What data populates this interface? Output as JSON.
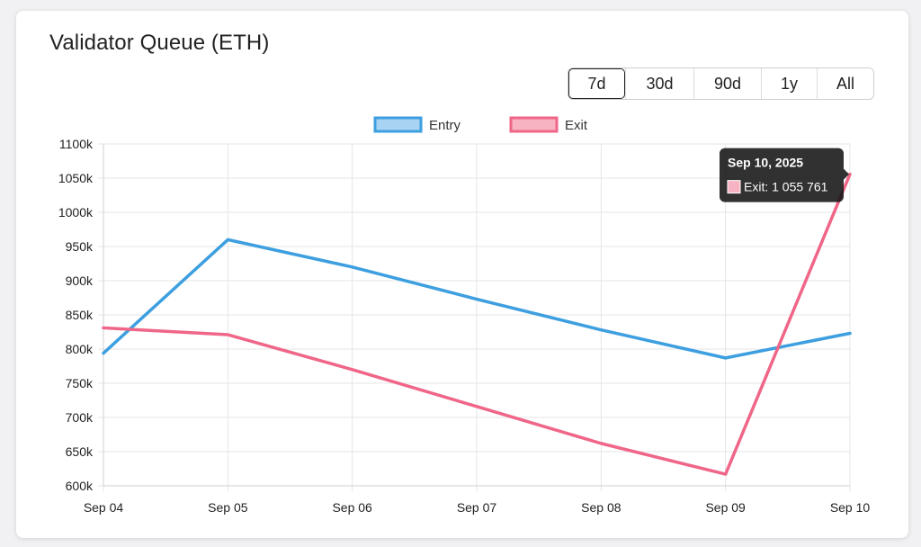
{
  "card": {
    "title": "Validator Queue (ETH)"
  },
  "range_buttons": [
    {
      "label": "7d",
      "active": true
    },
    {
      "label": "30d",
      "active": false
    },
    {
      "label": "90d",
      "active": false
    },
    {
      "label": "1y",
      "active": false
    },
    {
      "label": "All",
      "active": false
    }
  ],
  "chart_data": {
    "type": "line",
    "title": "",
    "xlabel": "",
    "ylabel": "",
    "categories": [
      "Sep 04",
      "Sep 05",
      "Sep 06",
      "Sep 07",
      "Sep 08",
      "Sep 09",
      "Sep 10"
    ],
    "ylim": [
      600000,
      1100000
    ],
    "y_ticks": [
      600000,
      650000,
      700000,
      750000,
      800000,
      850000,
      900000,
      950000,
      1000000,
      1050000,
      1100000
    ],
    "y_tick_labels": [
      "600k",
      "650k",
      "700k",
      "750k",
      "800k",
      "850k",
      "900k",
      "950k",
      "1000k",
      "1050k",
      "1100k"
    ],
    "grid": true,
    "legend_position": "top-center",
    "series": [
      {
        "name": "Entry",
        "color": "#3d9fe0",
        "fill": "#a9d3f2",
        "values": [
          794000,
          960000,
          920000,
          873000,
          828000,
          787000,
          823000
        ]
      },
      {
        "name": "Exit",
        "color": "#ef6688",
        "fill": "#f8b3c3",
        "values": [
          831000,
          821000,
          770000,
          716000,
          662000,
          617000,
          1055761
        ]
      }
    ],
    "tooltip": {
      "title": "Sep 10, 2025",
      "text": "Exit: 1 055 761",
      "series_index": 1,
      "point_index": 6
    }
  }
}
